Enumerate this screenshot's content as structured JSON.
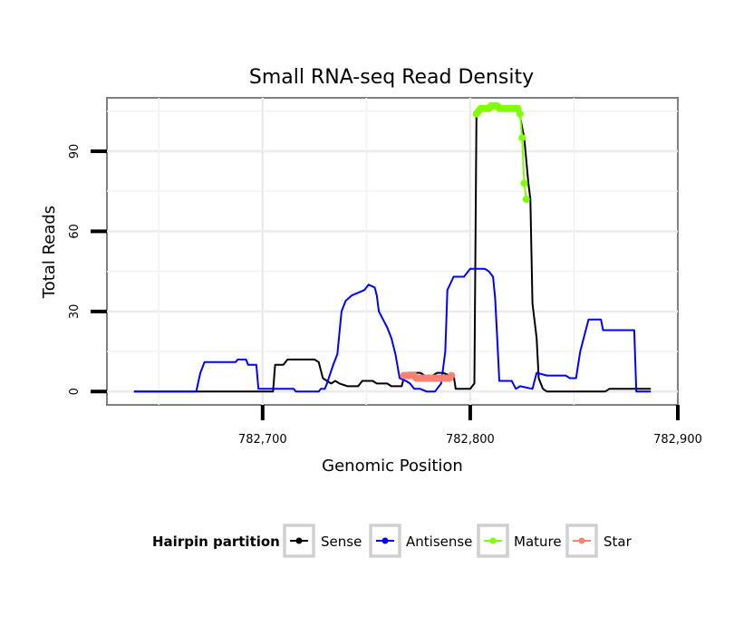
{
  "chart_data": {
    "type": "line",
    "title": "Small RNA-seq Read Density",
    "xlabel": "Genomic Position",
    "ylabel": "Total Reads",
    "xlim": [
      782625,
      782900
    ],
    "ylim": [
      -5,
      110
    ],
    "x_ticks": [
      782700,
      782800,
      782900
    ],
    "x_tick_labels": [
      "782,700",
      "782,800",
      "782,900"
    ],
    "y_ticks": [
      0,
      30,
      60,
      90
    ],
    "y_tick_labels": [
      "0",
      "30",
      "60",
      "90"
    ],
    "grid": true,
    "legend": {
      "title": "Hairpin partition",
      "position": "bottom",
      "entries": [
        {
          "label": "Sense",
          "color": "#000000"
        },
        {
          "label": "Antisense",
          "color": "#0000ff"
        },
        {
          "label": "Mature",
          "color": "#7fff00"
        },
        {
          "label": "Star",
          "color": "#fa8072"
        }
      ]
    },
    "series": [
      {
        "name": "Sense",
        "color": "#000000",
        "points": [
          [
            782638,
            0
          ],
          [
            782705,
            0
          ],
          [
            782706,
            10
          ],
          [
            782710,
            10
          ],
          [
            782712,
            12
          ],
          [
            782725,
            12
          ],
          [
            782727,
            11
          ],
          [
            782729,
            5
          ],
          [
            782731,
            4
          ],
          [
            782733,
            3
          ],
          [
            782735,
            4
          ],
          [
            782737,
            3
          ],
          [
            782741,
            2
          ],
          [
            782746,
            2
          ],
          [
            782748,
            4
          ],
          [
            782753,
            4
          ],
          [
            782755,
            3
          ],
          [
            782760,
            3
          ],
          [
            782762,
            2
          ],
          [
            782767,
            2
          ],
          [
            782768,
            5
          ],
          [
            782770,
            7
          ],
          [
            782776,
            7
          ],
          [
            782778,
            6
          ],
          [
            782782,
            6
          ],
          [
            782784,
            7
          ],
          [
            782787,
            7
          ],
          [
            782790,
            6
          ],
          [
            782792,
            6
          ],
          [
            782793,
            1
          ],
          [
            782800,
            1
          ],
          [
            782802,
            3
          ],
          [
            782803,
            104
          ],
          [
            782805,
            105
          ],
          [
            782808,
            106
          ],
          [
            782812,
            107
          ],
          [
            782818,
            106
          ],
          [
            782822,
            106
          ],
          [
            782824,
            103
          ],
          [
            782826,
            95
          ],
          [
            782828,
            78
          ],
          [
            782829,
            72
          ],
          [
            782830,
            33
          ],
          [
            782832,
            20
          ],
          [
            782833,
            5
          ],
          [
            782835,
            1
          ],
          [
            782837,
            0
          ],
          [
            782865,
            0
          ],
          [
            782867,
            1
          ],
          [
            782887,
            1
          ]
        ]
      },
      {
        "name": "Antisense",
        "color": "#0000ff",
        "points": [
          [
            782638,
            0
          ],
          [
            782668,
            0
          ],
          [
            782670,
            7
          ],
          [
            782672,
            11
          ],
          [
            782687,
            11
          ],
          [
            782688,
            12
          ],
          [
            782692,
            12
          ],
          [
            782693,
            10
          ],
          [
            782697,
            10
          ],
          [
            782698,
            1
          ],
          [
            782711,
            1
          ],
          [
            782715,
            1
          ],
          [
            782716,
            0
          ],
          [
            782727,
            0
          ],
          [
            782728,
            1
          ],
          [
            782730,
            1
          ],
          [
            782731,
            3
          ],
          [
            782734,
            10
          ],
          [
            782736,
            14
          ],
          [
            782738,
            30
          ],
          [
            782740,
            34
          ],
          [
            782743,
            36
          ],
          [
            782746,
            37
          ],
          [
            782749,
            38
          ],
          [
            782751,
            40
          ],
          [
            782754,
            39
          ],
          [
            782755,
            36
          ],
          [
            782756,
            30
          ],
          [
            782758,
            27
          ],
          [
            782760,
            24
          ],
          [
            782762,
            20
          ],
          [
            782764,
            14
          ],
          [
            782766,
            5
          ],
          [
            782769,
            4
          ],
          [
            782771,
            3
          ],
          [
            782773,
            1
          ],
          [
            782776,
            1
          ],
          [
            782779,
            0
          ],
          [
            782783,
            0
          ],
          [
            782786,
            3
          ],
          [
            782788,
            15
          ],
          [
            782789,
            38
          ],
          [
            782792,
            43
          ],
          [
            782797,
            43
          ],
          [
            782800,
            46
          ],
          [
            782807,
            46
          ],
          [
            782809,
            45
          ],
          [
            782811,
            43
          ],
          [
            782812,
            35
          ],
          [
            782813,
            20
          ],
          [
            782814,
            4
          ],
          [
            782820,
            4
          ],
          [
            782822,
            1
          ],
          [
            782824,
            2
          ],
          [
            782830,
            1
          ],
          [
            782832,
            7
          ],
          [
            782837,
            6
          ],
          [
            782846,
            6
          ],
          [
            782848,
            5
          ],
          [
            782851,
            5
          ],
          [
            782853,
            15
          ],
          [
            782855,
            21
          ],
          [
            782857,
            27
          ],
          [
            782863,
            27
          ],
          [
            782864,
            23
          ],
          [
            782879,
            23
          ],
          [
            782880,
            0
          ],
          [
            782887,
            0
          ]
        ]
      },
      {
        "name": "Mature",
        "color": "#7fff00",
        "points": [
          [
            782803,
            104
          ],
          [
            782804,
            105
          ],
          [
            782805,
            106
          ],
          [
            782806,
            106
          ],
          [
            782807,
            106
          ],
          [
            782808,
            106
          ],
          [
            782809,
            106
          ],
          [
            782810,
            107
          ],
          [
            782811,
            107
          ],
          [
            782812,
            107
          ],
          [
            782813,
            107
          ],
          [
            782814,
            106
          ],
          [
            782815,
            106
          ],
          [
            782816,
            106
          ],
          [
            782817,
            106
          ],
          [
            782818,
            106
          ],
          [
            782819,
            106
          ],
          [
            782820,
            106
          ],
          [
            782821,
            106
          ],
          [
            782822,
            106
          ],
          [
            782823,
            106
          ],
          [
            782824,
            104
          ],
          [
            782825,
            95
          ],
          [
            782826,
            78
          ],
          [
            782827,
            72
          ]
        ]
      },
      {
        "name": "Star",
        "color": "#fa8072",
        "points": [
          [
            782768,
            6
          ],
          [
            782769,
            6
          ],
          [
            782770,
            6
          ],
          [
            782771,
            6
          ],
          [
            782772,
            6
          ],
          [
            782773,
            6
          ],
          [
            782774,
            5
          ],
          [
            782775,
            5
          ],
          [
            782776,
            5
          ],
          [
            782777,
            5
          ],
          [
            782778,
            5
          ],
          [
            782779,
            5
          ],
          [
            782780,
            5
          ],
          [
            782781,
            5
          ],
          [
            782782,
            5
          ],
          [
            782783,
            5
          ],
          [
            782784,
            5
          ],
          [
            782785,
            5
          ],
          [
            782786,
            5
          ],
          [
            782787,
            5
          ],
          [
            782788,
            5
          ],
          [
            782789,
            5
          ],
          [
            782790,
            5
          ],
          [
            782791,
            6
          ]
        ]
      }
    ]
  }
}
